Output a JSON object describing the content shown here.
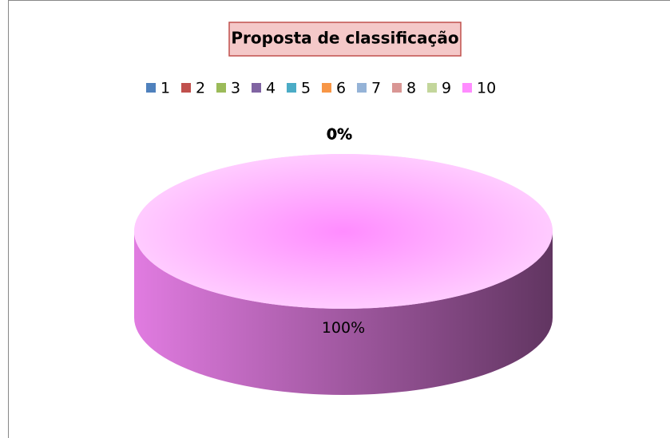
{
  "chart_data": {
    "type": "pie",
    "title": "Proposta de classificação",
    "categories": [
      "1",
      "2",
      "3",
      "4",
      "5",
      "6",
      "7",
      "8",
      "9",
      "10"
    ],
    "values": [
      0,
      0,
      0,
      0,
      0,
      0,
      0,
      0,
      0,
      100
    ],
    "value_labels": [
      "0%",
      "0%",
      "0%",
      "0%",
      "0%",
      "0%",
      "0%",
      "0%",
      "0%",
      "100%"
    ],
    "colors": [
      "#4f81bd",
      "#c0504d",
      "#9bbb59",
      "#8064a2",
      "#4bacc6",
      "#f79646",
      "#95b3d7",
      "#d99694",
      "#c3d69b",
      "#ff8cff"
    ],
    "legend": "top"
  }
}
